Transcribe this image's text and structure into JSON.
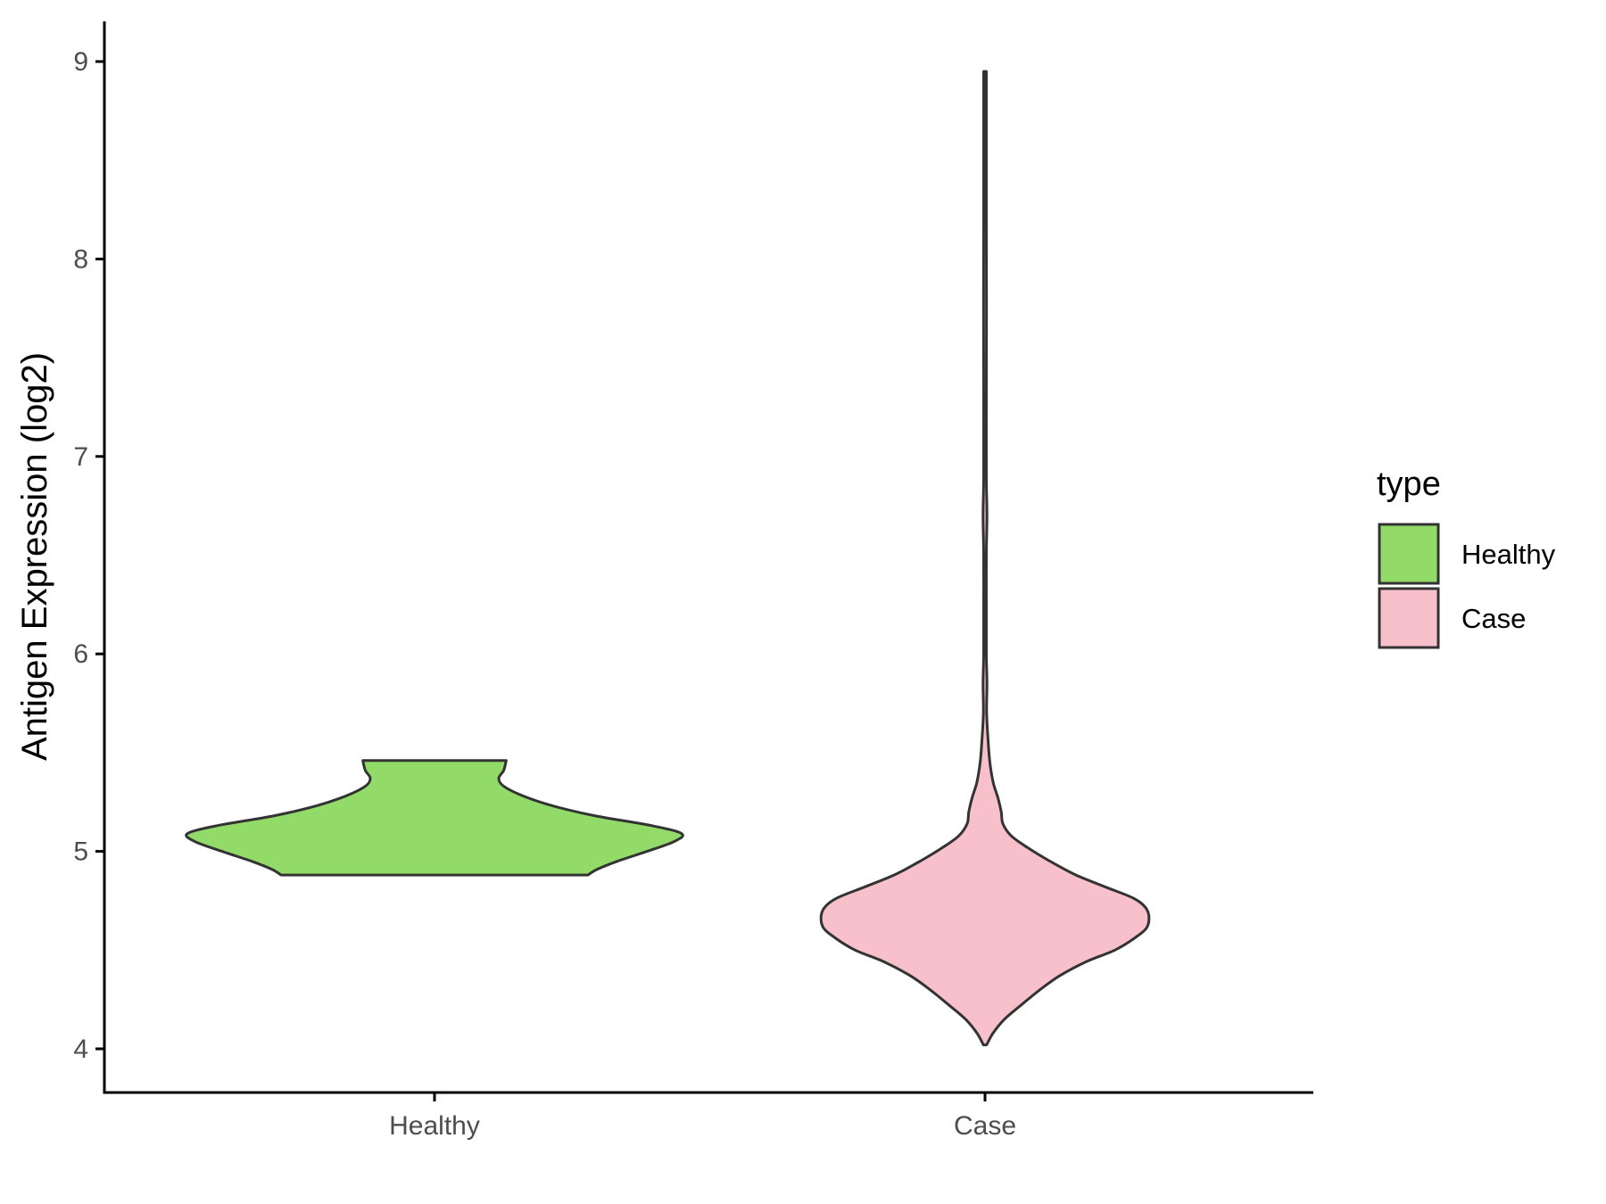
{
  "chart_data": {
    "type": "violin",
    "ylabel": "Antigen Expression (log2)",
    "xlabel": "",
    "categories": [
      "Healthy",
      "Case"
    ],
    "ylim": [
      3.8,
      9.2
    ],
    "yticks": [
      4,
      5,
      6,
      7,
      8,
      9
    ],
    "grid": false,
    "legend": {
      "title": "type",
      "position": "right",
      "entries": [
        {
          "label": "Healthy",
          "color": "#93DB69"
        },
        {
          "label": "Case",
          "color": "#F8C0CB"
        }
      ]
    },
    "series": [
      {
        "category": "Healthy",
        "color": "#93DB69",
        "min": 4.88,
        "max": 5.46,
        "density_profile": [
          {
            "y": 4.88,
            "w": 0.62
          },
          {
            "y": 4.91,
            "w": 0.66
          },
          {
            "y": 4.95,
            "w": 0.74
          },
          {
            "y": 5.0,
            "w": 0.86
          },
          {
            "y": 5.05,
            "w": 0.97
          },
          {
            "y": 5.09,
            "w": 1.0
          },
          {
            "y": 5.13,
            "w": 0.88
          },
          {
            "y": 5.18,
            "w": 0.65
          },
          {
            "y": 5.23,
            "w": 0.48
          },
          {
            "y": 5.28,
            "w": 0.36
          },
          {
            "y": 5.33,
            "w": 0.28
          },
          {
            "y": 5.37,
            "w": 0.26
          },
          {
            "y": 5.41,
            "w": 0.28
          },
          {
            "y": 5.46,
            "w": 0.29
          }
        ]
      },
      {
        "category": "Case",
        "color": "#F8C0CB",
        "min": 4.02,
        "max": 8.95,
        "density_profile": [
          {
            "y": 4.02,
            "w": 0.01
          },
          {
            "y": 4.08,
            "w": 0.05
          },
          {
            "y": 4.15,
            "w": 0.12
          },
          {
            "y": 4.22,
            "w": 0.22
          },
          {
            "y": 4.3,
            "w": 0.34
          },
          {
            "y": 4.37,
            "w": 0.46
          },
          {
            "y": 4.44,
            "w": 0.62
          },
          {
            "y": 4.5,
            "w": 0.8
          },
          {
            "y": 4.56,
            "w": 0.92
          },
          {
            "y": 4.62,
            "w": 1.0
          },
          {
            "y": 4.7,
            "w": 1.0
          },
          {
            "y": 4.76,
            "w": 0.92
          },
          {
            "y": 4.82,
            "w": 0.74
          },
          {
            "y": 4.88,
            "w": 0.56
          },
          {
            "y": 4.95,
            "w": 0.4
          },
          {
            "y": 5.02,
            "w": 0.26
          },
          {
            "y": 5.08,
            "w": 0.16
          },
          {
            "y": 5.14,
            "w": 0.11
          },
          {
            "y": 5.2,
            "w": 0.1
          },
          {
            "y": 5.27,
            "w": 0.08
          },
          {
            "y": 5.35,
            "w": 0.05
          },
          {
            "y": 5.45,
            "w": 0.03
          },
          {
            "y": 5.55,
            "w": 0.02
          },
          {
            "y": 5.7,
            "w": 0.01
          },
          {
            "y": 5.85,
            "w": 0.012
          },
          {
            "y": 6.0,
            "w": 0.006
          },
          {
            "y": 6.2,
            "w": 0.006
          },
          {
            "y": 6.5,
            "w": 0.005
          },
          {
            "y": 6.7,
            "w": 0.012
          },
          {
            "y": 6.9,
            "w": 0.005
          },
          {
            "y": 7.3,
            "w": 0.004
          },
          {
            "y": 7.75,
            "w": 0.009
          },
          {
            "y": 8.2,
            "w": 0.004
          },
          {
            "y": 8.6,
            "w": 0.004
          },
          {
            "y": 8.95,
            "w": 0.003
          }
        ]
      }
    ]
  }
}
